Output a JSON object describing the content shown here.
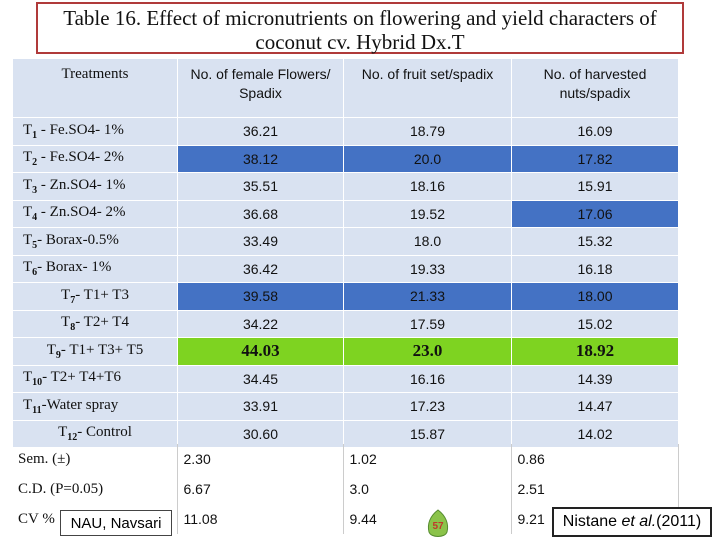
{
  "title": {
    "line1": "Table 16. Effect of micronutrients on flowering and yield characters of",
    "line2": "coconut cv. Hybrid Dx.T"
  },
  "headers": {
    "treatments": "Treatments",
    "female_flowers": "No. of female Flowers/ Spadix",
    "fruit_set": "No. of fruit set/spadix",
    "harvested_nuts": "No. of harvested nuts/spadix"
  },
  "rows": [
    {
      "t": "T",
      "sub": "1",
      "rest": " - Fe.SO4- 1%",
      "v1": "36.21",
      "v2": "18.79",
      "v3": "16.09"
    },
    {
      "t": "T",
      "sub": "2",
      "rest": " - Fe.SO4- 2%",
      "v1": "38.12",
      "v2": "20.0",
      "v3": "17.82"
    },
    {
      "t": "T",
      "sub": "3",
      "rest": " - Zn.SO4- 1%",
      "v1": "35.51",
      "v2": "18.16",
      "v3": "15.91"
    },
    {
      "t": "T",
      "sub": "4",
      "rest": " - Zn.SO4- 2%",
      "v1": "36.68",
      "v2": "19.52",
      "v3": "17.06"
    },
    {
      "t": "T",
      "sub": "5",
      "rest": "- Borax-0.5%",
      "v1": "33.49",
      "v2": "18.0",
      "v3": "15.32"
    },
    {
      "t": "T",
      "sub": "6",
      "rest": "- Borax- 1%",
      "v1": "36.42",
      "v2": "19.33",
      "v3": "16.18"
    },
    {
      "t": "T",
      "sub": "7",
      "rest": "- T1+ T3",
      "v1": "39.58",
      "v2": "21.33",
      "v3": "18.00"
    },
    {
      "t": "T",
      "sub": "8",
      "rest": "- T2+ T4",
      "v1": "34.22",
      "v2": "17.59",
      "v3": "15.02"
    },
    {
      "t": "T",
      "sub": "9",
      "rest": "- T1+ T3+ T5",
      "v1": "44.03",
      "v2": "23.0",
      "v3": "18.92"
    },
    {
      "t": "T",
      "sub": "10",
      "rest": "- T2+ T4+T6",
      "v1": "34.45",
      "v2": "16.16",
      "v3": "14.39"
    },
    {
      "t": "T",
      "sub": "11",
      "rest": "-Water spray",
      "v1": "33.91",
      "v2": "17.23",
      "v3": "14.47"
    },
    {
      "t": "T",
      "sub": "12",
      "rest": "- Control",
      "v1": "30.60",
      "v2": "15.87",
      "v3": "14.02"
    }
  ],
  "stats": {
    "sem_label": "Sem. (±)",
    "sem": [
      "2.30",
      "1.02",
      "0.86"
    ],
    "cd_label": "C.D. (P=0.05)",
    "cd": [
      "6.67",
      "3.0",
      "2.51"
    ],
    "cv_label": "CV %",
    "cv": [
      "11.08",
      "9.44",
      "9.21"
    ]
  },
  "footer": {
    "institution": "NAU, Navsari",
    "slide_number": "57",
    "citation_author": "Nistane ",
    "citation_etal": "et al.",
    "citation_year": "(2011)"
  },
  "colors": {
    "highlight_blue": "#4472c4",
    "highlight_green": "#7ed321",
    "table_bg": "#d9e2f1",
    "title_border": "#b03a3a"
  }
}
